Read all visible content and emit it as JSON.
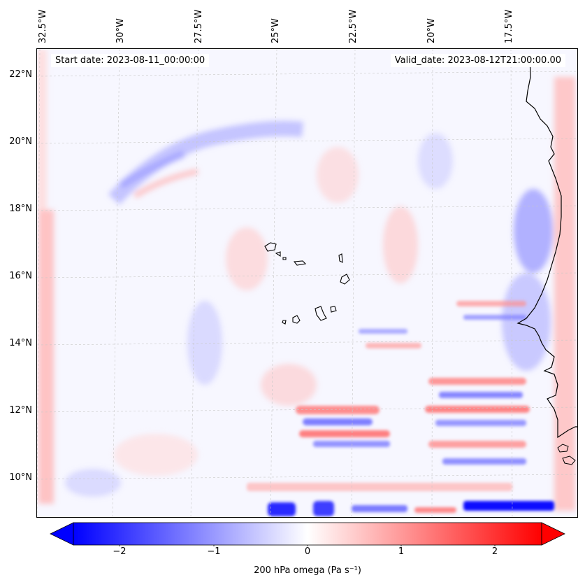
{
  "header": {
    "start_date": "Start date: 2023-08-11_00:00:00",
    "valid_date": "Valid_date: 2023-08-12T21:00:00.00"
  },
  "lat_labels": [
    "22°N",
    "20°N",
    "18°N",
    "16°N",
    "14°N",
    "12°N",
    "10°N"
  ],
  "lon_labels": [
    "32.5°W",
    "30°W",
    "27.5°W",
    "25°W",
    "22.5°W",
    "20°W",
    "17.5°W"
  ],
  "colorbar": {
    "ticks": [
      "−2",
      "−1",
      "0",
      "1",
      "2"
    ],
    "label": "200 hPa omega (Pa s⁻¹)",
    "min": -2.5,
    "max": 2.5,
    "colormap": "bwr",
    "extend": "both",
    "colors": {
      "negative": "#0000ff",
      "zero": "#ffffff",
      "positive": "#ff0000"
    }
  },
  "map": {
    "projection": "lambert",
    "extent": {
      "lon_min": -32.5,
      "lon_max": -16,
      "lat_min": 8.8,
      "lat_max": 22.8
    },
    "variable": "omega",
    "level_hpa": 200,
    "coastline_color": "#000000"
  }
}
